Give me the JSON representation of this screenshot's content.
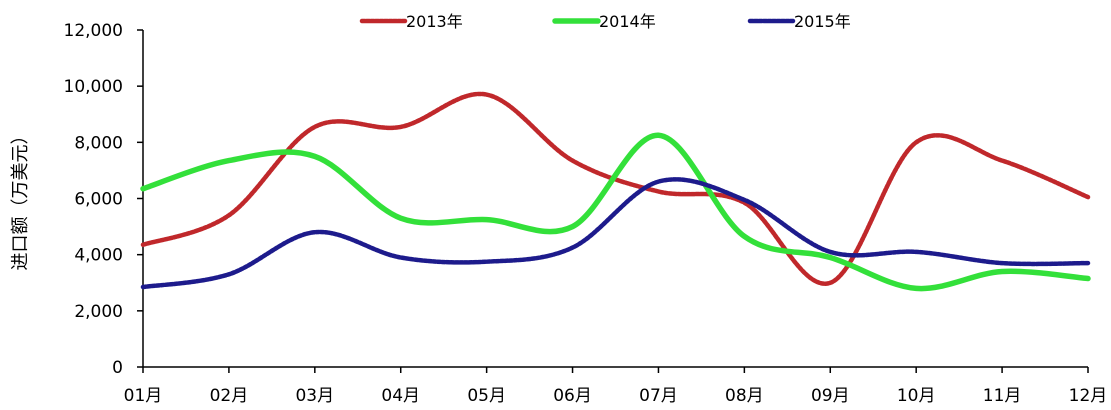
{
  "chart_data": {
    "type": "line",
    "categories": [
      "01月",
      "02月",
      "03月",
      "04月",
      "05月",
      "06月",
      "07月",
      "08月",
      "09月",
      "10月",
      "11月",
      "12月"
    ],
    "series": [
      {
        "name": "2013年",
        "color": "#c0282b",
        "values": [
          4350,
          5400,
          8550,
          8550,
          9700,
          7350,
          6250,
          5850,
          3000,
          8000,
          7350,
          6050
        ]
      },
      {
        "name": "2014年",
        "color": "#33e03a",
        "values": [
          6350,
          7350,
          7500,
          5300,
          5250,
          5000,
          8250,
          4650,
          3900,
          2800,
          3400,
          3150
        ]
      },
      {
        "name": "2015年",
        "color": "#1d1b8c",
        "values": [
          2850,
          3300,
          4800,
          3900,
          3750,
          4250,
          6600,
          5950,
          4100,
          4100,
          3700,
          3700
        ]
      }
    ],
    "ylabel": "进口额（万美元）",
    "ylim": [
      0,
      12000
    ],
    "yticks": [
      "0",
      "2,000",
      "4,000",
      "6,000",
      "8,000",
      "10,000",
      "12,000"
    ],
    "legend_position": "top",
    "grid": false
  }
}
